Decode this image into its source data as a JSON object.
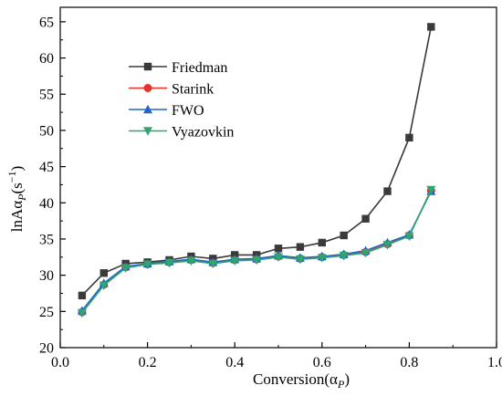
{
  "chart_data": {
    "type": "line",
    "xlabel": "Conversion(α",
    "xlabel_sub": "P",
    "xlabel_close": ")",
    "ylabel": "lnAα",
    "ylabel_sub": "P",
    "ylabel_unit_open": "(s",
    "ylabel_unit_sup": "−1",
    "ylabel_unit_close": ")",
    "xlim": [
      0.0,
      1.0
    ],
    "ylim": [
      20,
      67
    ],
    "xticks": [
      0.0,
      0.2,
      0.4,
      0.6,
      0.8,
      1.0
    ],
    "xtick_labels": [
      "0.0",
      "0.2",
      "0.4",
      "0.6",
      "0.8",
      "1.0"
    ],
    "yticks": [
      20,
      25,
      30,
      35,
      40,
      45,
      50,
      55,
      60,
      65
    ],
    "ytick_labels": [
      "20",
      "25",
      "30",
      "35",
      "40",
      "45",
      "50",
      "55",
      "60",
      "65"
    ],
    "grid": false,
    "legend_position": "top-left",
    "x": [
      0.05,
      0.1,
      0.15,
      0.2,
      0.25,
      0.3,
      0.35,
      0.4,
      0.45,
      0.5,
      0.55,
      0.6,
      0.65,
      0.7,
      0.75,
      0.8,
      0.85
    ],
    "series": [
      {
        "name": "Friedman",
        "color": "#3a3a3a",
        "marker": "square",
        "values": [
          27.2,
          30.3,
          31.6,
          31.8,
          32.1,
          32.6,
          32.3,
          32.8,
          32.8,
          33.7,
          33.9,
          34.5,
          35.5,
          37.8,
          41.6,
          49.0,
          64.3
        ]
      },
      {
        "name": "Starink",
        "color": "#e8302a",
        "marker": "circle",
        "values": [
          24.9,
          28.7,
          31.1,
          31.5,
          31.8,
          32.1,
          31.7,
          32.1,
          32.2,
          32.6,
          32.3,
          32.5,
          32.8,
          33.2,
          34.3,
          35.5,
          41.7
        ]
      },
      {
        "name": "FWO",
        "color": "#2166c9",
        "marker": "triangle-up",
        "values": [
          25.1,
          28.9,
          31.2,
          31.6,
          31.9,
          32.2,
          31.8,
          32.2,
          32.3,
          32.7,
          32.4,
          32.6,
          32.9,
          33.4,
          34.5,
          35.6,
          41.6
        ]
      },
      {
        "name": "Vyazovkin",
        "color": "#2fa672",
        "marker": "triangle-down",
        "values": [
          24.8,
          28.6,
          31.0,
          31.5,
          31.7,
          32.0,
          31.6,
          32.0,
          32.1,
          32.5,
          32.2,
          32.4,
          32.7,
          33.1,
          34.2,
          35.4,
          41.8
        ]
      }
    ]
  }
}
